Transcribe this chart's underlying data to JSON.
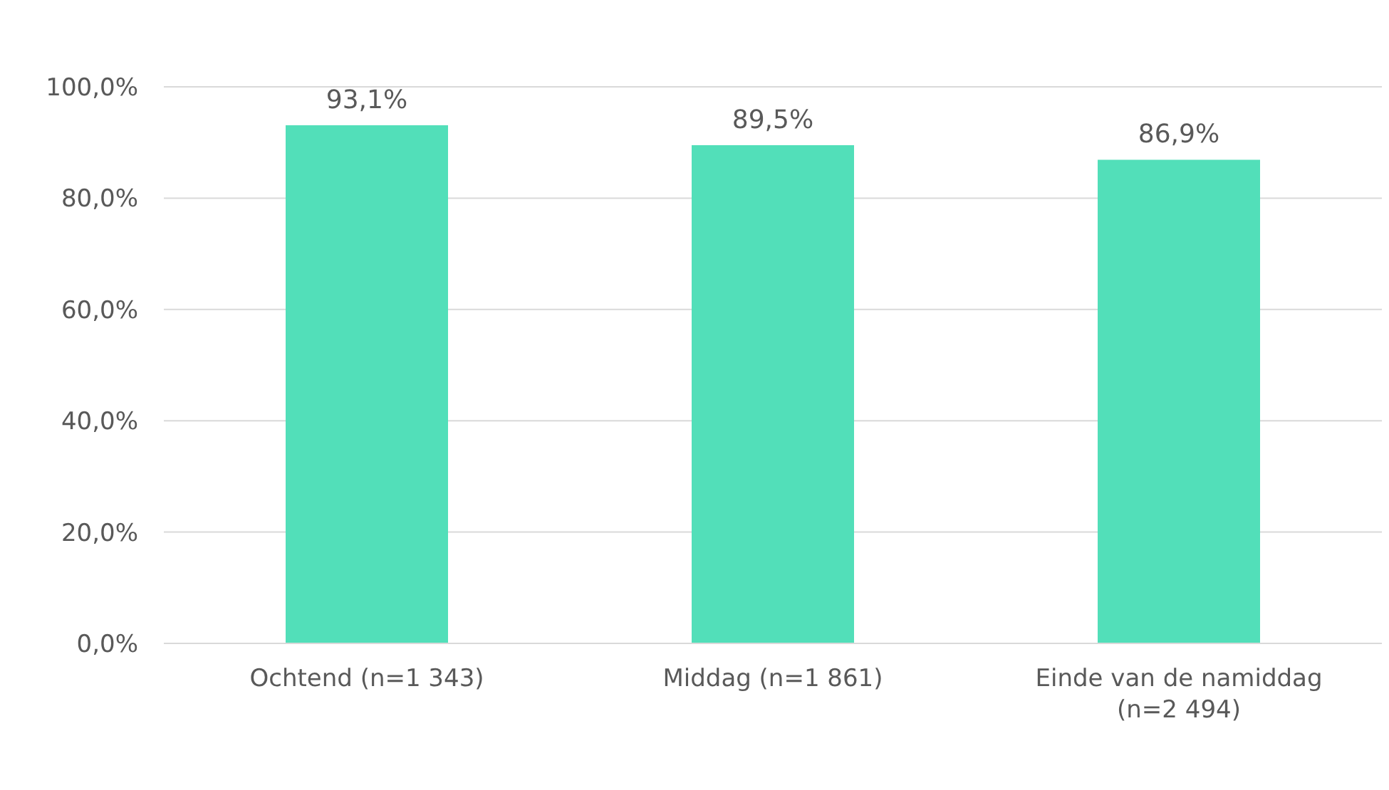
{
  "chart_data": {
    "type": "bar",
    "categories": [
      "Ochtend (n=1 343)",
      "Middag (n=1 861)",
      "Einde van de namiddag (n=2 494)"
    ],
    "values": [
      93.1,
      89.5,
      86.9
    ],
    "value_labels": [
      "93,1%",
      "89,5%",
      "86,9%"
    ],
    "color": "#52dfb9",
    "ylim": [
      0,
      100
    ],
    "yticks": [
      {
        "value": 0,
        "label": "0,0%"
      },
      {
        "value": 20,
        "label": "20,0%"
      },
      {
        "value": 40,
        "label": "40,0%"
      },
      {
        "value": 60,
        "label": "60,0%"
      },
      {
        "value": 80,
        "label": "80,0%"
      },
      {
        "value": 100,
        "label": "100,0%"
      }
    ],
    "grid": "y"
  }
}
